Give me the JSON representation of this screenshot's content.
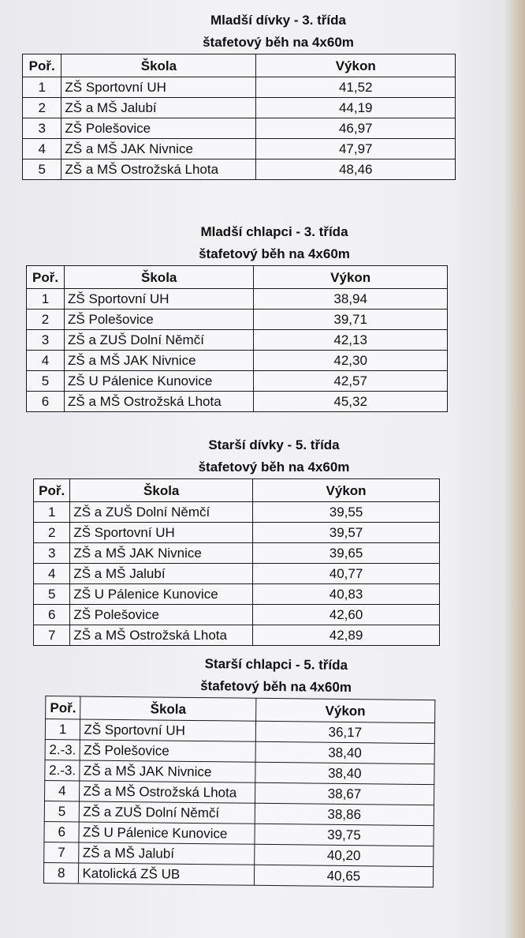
{
  "sections": [
    {
      "title": "Mladší dívky - 3. třída",
      "subtitle": "štafetový běh na 4x60m",
      "headers": [
        "Poř.",
        "Škola",
        "Výkon"
      ],
      "rows": [
        [
          "1",
          "ZŠ Sportovní UH",
          "41,52"
        ],
        [
          "2",
          "ZŠ a MŠ Jalubí",
          "44,19"
        ],
        [
          "3",
          "ZŠ Polešovice",
          "46,97"
        ],
        [
          "4",
          "ZŠ a MŠ JAK Nivnice",
          "47,97"
        ],
        [
          "5",
          "ZŠ a MŠ Ostrožská Lhota",
          "48,46"
        ]
      ]
    },
    {
      "title": "Mladší chlapci - 3. třída",
      "subtitle": "štafetový běh na 4x60m",
      "headers": [
        "Poř.",
        "Škola",
        "Výkon"
      ],
      "rows": [
        [
          "1",
          "ZŠ Sportovní UH",
          "38,94"
        ],
        [
          "2",
          "ZŠ Polešovice",
          "39,71"
        ],
        [
          "3",
          "ZŠ a ZUŠ Dolní Němčí",
          "42,13"
        ],
        [
          "4",
          "ZŠ a MŠ JAK Nivnice",
          "42,30"
        ],
        [
          "5",
          "ZŠ U Pálenice Kunovice",
          "42,57"
        ],
        [
          "6",
          "ZŠ a MŠ Ostrožská Lhota",
          "45,32"
        ]
      ]
    },
    {
      "title": "Starší dívky - 5. třída",
      "subtitle": "štafetový běh na 4x60m",
      "headers": [
        "Poř.",
        "Škola",
        "Výkon"
      ],
      "rows": [
        [
          "1",
          "ZŠ a ZUŠ Dolní Němčí",
          "39,55"
        ],
        [
          "2",
          "ZŠ Sportovní UH",
          "39,57"
        ],
        [
          "3",
          "ZŠ a MŠ JAK Nivnice",
          "39,65"
        ],
        [
          "4",
          "ZŠ a MŠ Jalubí",
          "40,77"
        ],
        [
          "5",
          "ZŠ U Pálenice Kunovice",
          "40,83"
        ],
        [
          "6",
          "ZŠ Polešovice",
          "42,60"
        ],
        [
          "7",
          "ZŠ a MŠ Ostrožská Lhota",
          "42,89"
        ]
      ]
    },
    {
      "title": "Starší chlapci - 5. třída",
      "subtitle": "štafetový běh na 4x60m",
      "headers": [
        "Poř.",
        "Škola",
        "Výkon"
      ],
      "rows": [
        [
          "1",
          "ZŠ Sportovní UH",
          "36,17"
        ],
        [
          "2.-3.",
          "ZŠ Polešovice",
          "38,40"
        ],
        [
          "2.-3.",
          "ZŠ a MŠ JAK Nivnice",
          "38,40"
        ],
        [
          "4",
          "ZŠ a MŠ Ostrožská Lhota",
          "38,67"
        ],
        [
          "5",
          "ZŠ a ZUŠ Dolní Němčí",
          "38,86"
        ],
        [
          "6",
          "ZŠ U Pálenice Kunovice",
          "39,75"
        ],
        [
          "7",
          "ZŠ a MŠ Jalubí",
          "40,20"
        ],
        [
          "8",
          "Katolická ZŠ UB",
          "40,65"
        ]
      ]
    }
  ]
}
